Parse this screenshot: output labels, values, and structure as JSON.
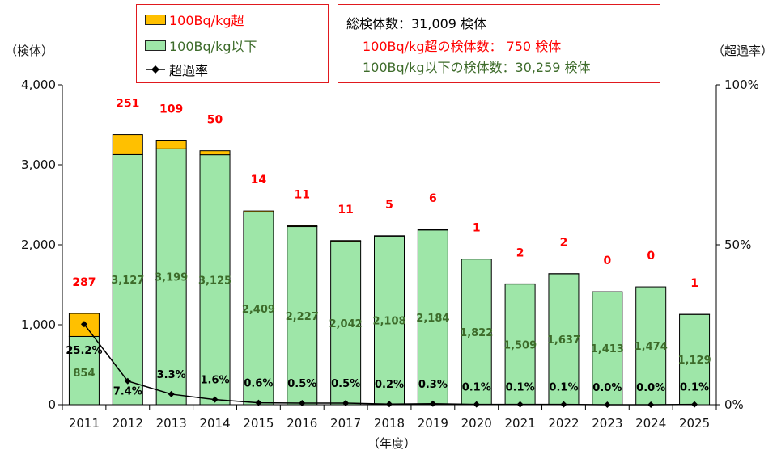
{
  "chart_data": {
    "type": "bar",
    "stacked": true,
    "categories": [
      "2011",
      "2012",
      "2013",
      "2014",
      "2015",
      "2016",
      "2017",
      "2018",
      "2019",
      "2020",
      "2021",
      "2022",
      "2023",
      "2024",
      "2025"
    ],
    "series": [
      {
        "name": "100Bq/kg以下",
        "values": [
          854,
          3127,
          3199,
          3125,
          2409,
          2227,
          2042,
          2108,
          2184,
          1822,
          1509,
          1637,
          1413,
          1474,
          1129
        ],
        "labels": [
          "854",
          "3,127",
          "3,199",
          "3,125",
          "2,409",
          "2,227",
          "2,042",
          "2,108",
          "2,184",
          "1,822",
          "1,509",
          "1,637",
          "1,413",
          "1,474",
          "1,129"
        ],
        "color": "#9ee6a8",
        "label_color": "#3d6b2a"
      },
      {
        "name": "100Bq/kg超",
        "values": [
          287,
          251,
          109,
          50,
          14,
          11,
          11,
          5,
          6,
          1,
          2,
          2,
          0,
          0,
          1
        ],
        "labels": [
          "287",
          "251",
          "109",
          "50",
          "14",
          "11",
          "11",
          "5",
          "6",
          "1",
          "2",
          "2",
          "0",
          "0",
          "1"
        ],
        "color": "#ffc000",
        "label_color": "#ff0000"
      },
      {
        "name": "超過率",
        "type": "line",
        "axis": "right",
        "values": [
          25.2,
          7.4,
          3.3,
          1.6,
          0.6,
          0.5,
          0.5,
          0.2,
          0.3,
          0.1,
          0.1,
          0.1,
          0.0,
          0.0,
          0.1
        ],
        "labels": [
          "25.2%",
          "7.4%",
          "3.3%",
          "1.6%",
          "0.6%",
          "0.5%",
          "0.5%",
          "0.2%",
          "0.3%",
          "0.1%",
          "0.1%",
          "0.1%",
          "0.0%",
          "0.0%",
          "0.1%"
        ],
        "color": "#000000"
      }
    ],
    "y_left": {
      "label": "（検体）",
      "ylim": [
        0,
        4000
      ],
      "ticks": [
        "0",
        "1,000",
        "2,000",
        "3,000",
        "4,000"
      ],
      "tick_values": [
        0,
        1000,
        2000,
        3000,
        4000
      ]
    },
    "y_right": {
      "label": "（超過率）",
      "ylim": [
        0,
        100
      ],
      "ticks": [
        "0%",
        "50%",
        "100%"
      ],
      "tick_values": [
        0,
        50,
        100
      ]
    },
    "xlabel": "（年度）",
    "grid": false,
    "legend_position": "top-left"
  },
  "legend": [
    {
      "label": "100Bq/kg超",
      "color": "#ffc000",
      "text_color": "#ff0000",
      "kind": "swatch"
    },
    {
      "label": "100Bq/kg以下",
      "color": "#9ee6a8",
      "text_color": "#3d6b2a",
      "kind": "swatch"
    },
    {
      "label": "超過率",
      "color": "#000000",
      "text_color": "#000000",
      "kind": "line"
    }
  ],
  "summary": {
    "total": "総検体数：31,009 検体",
    "over": "100Bq/kg超の検体数： 750 検体",
    "under": "100Bq/kg以下の検体数：30,259 検体",
    "colors": {
      "total": "#000000",
      "over": "#ff0000",
      "under": "#3d6b2a"
    }
  }
}
